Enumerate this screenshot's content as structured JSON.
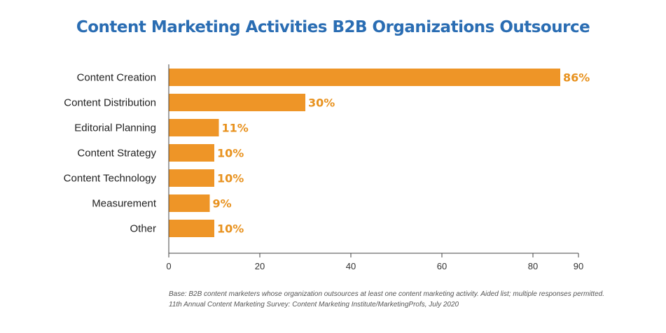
{
  "chart_data": {
    "type": "bar",
    "orientation": "horizontal",
    "title": "Content Marketing Activities B2B Organizations Outsource",
    "categories": [
      "Content Creation",
      "Content Distribution",
      "Editorial Planning",
      "Content Strategy",
      "Content Technology",
      "Measurement",
      "Other"
    ],
    "values": [
      86,
      30,
      11,
      10,
      10,
      9,
      10
    ],
    "data_labels": [
      "86%",
      "30%",
      "11%",
      "10%",
      "10%",
      "9%",
      "10%"
    ],
    "xlim": [
      0,
      90
    ],
    "xticks": [
      0,
      20,
      40,
      60,
      80,
      90
    ],
    "grid": false,
    "bar_color": "#ee9527",
    "title_color": "#2a6db3",
    "label_color": "#e8921f"
  },
  "footnotes": [
    "Base: B2B content marketers whose organization outsources at least one content marketing activity. Aided list; multiple responses permitted.",
    "11th Annual Content Marketing Survey: Content Marketing Institute/MarketingProfs, July 2020"
  ]
}
